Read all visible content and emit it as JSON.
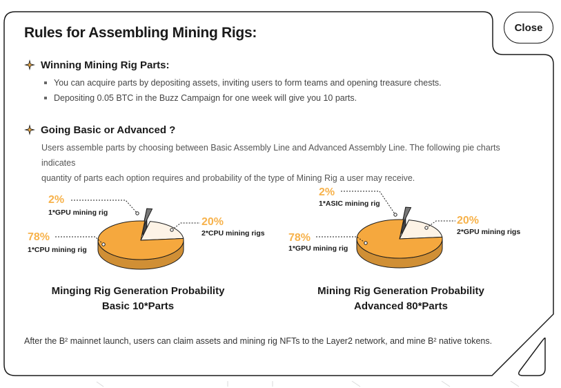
{
  "modal": {
    "title": "Rules for Assembling Mining Rigs:",
    "close_label": "Close"
  },
  "sections": [
    {
      "icon": "sparkle-icon",
      "title": "Winning Mining Rig Parts:",
      "bullets": [
        "You can acquire parts by depositing assets, inviting users to form teams and opening treasure chests.",
        "Depositing 0.05 BTC in the Buzz Campaign for one week will give you 10 parts."
      ]
    },
    {
      "icon": "sparkle-icon",
      "title": "Going Basic or Advanced ?",
      "description_line1": "Users assemble parts by choosing between Basic Assembly Line and Advanced Assembly Line. The following pie charts indicates",
      "description_line2": "quantity of parts each option requires and probability of the type of Mining Rig a user may receive."
    }
  ],
  "chart_data": [
    {
      "type": "pie",
      "slices": [
        {
          "percent_label": "78%",
          "label": "1*CPU mining rig",
          "value": 78,
          "color": "#f5a83e"
        },
        {
          "percent_label": "20%",
          "label": "2*CPU mining rigs",
          "value": 20,
          "color": "#fdf3e6"
        },
        {
          "percent_label": "2%",
          "label": "1*GPU mining rig",
          "value": 2,
          "color": "#777777"
        }
      ],
      "caption_line1": "Minging Rig Generation Probability",
      "caption_line2": "Basic  10*Parts"
    },
    {
      "type": "pie",
      "slices": [
        {
          "percent_label": "78%",
          "label": "1*GPU mining rig",
          "value": 78,
          "color": "#f5a83e"
        },
        {
          "percent_label": "20%",
          "label": "2*GPU mining rigs",
          "value": 20,
          "color": "#fdf3e6"
        },
        {
          "percent_label": "2%",
          "label": "1*ASIC mining rig",
          "value": 2,
          "color": "#777777"
        }
      ],
      "caption_line1": "Mining Rig Generation Probability",
      "caption_line2": "Advanced  80*Parts"
    }
  ],
  "footer": {
    "text": "After the B² mainnet launch, users can claim assets and mining rig NFTs to the Layer2 network, and mine B² native tokens."
  },
  "colors": {
    "accent": "#f7b24b",
    "slice_main": "#f5a83e",
    "slice_light": "#fdf3e6",
    "slice_small": "#777777",
    "border": "#1a1a1a"
  }
}
